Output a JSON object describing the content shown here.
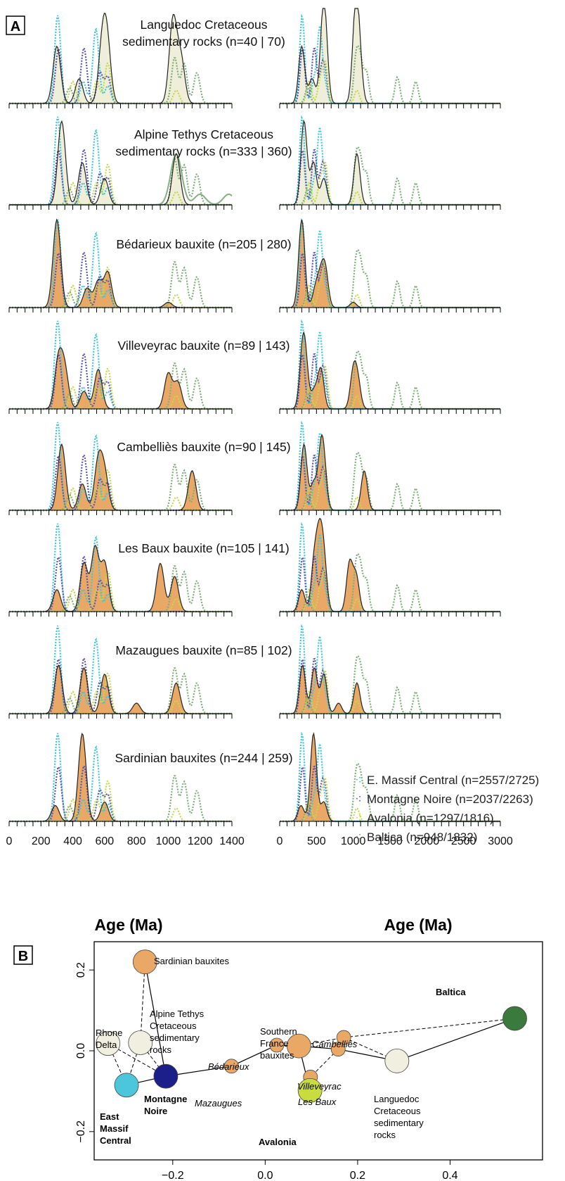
{
  "panel_a": {
    "label": "A",
    "xlabel": "Age (Ma)",
    "left_ticks": [
      0,
      200,
      400,
      600,
      800,
      1000,
      1200,
      1400
    ],
    "right_ticks": [
      0,
      500,
      1000,
      1500,
      2000,
      2500,
      3000
    ],
    "left_xlim": [
      0,
      1400
    ],
    "right_xlim": [
      0,
      3000
    ],
    "rows": [
      {
        "title_lines": [
          "Languedoc Cretaceous",
          "sedimentary rocks (n=40 | 70)"
        ],
        "fill": "cream"
      },
      {
        "title_lines": [
          "Alpine Tethys Cretaceous",
          "sedimentary rocks (n=333 | 360)"
        ],
        "fill": "cream"
      },
      {
        "title_lines": [
          "Bédarieux bauxite (n=205 | 280)"
        ],
        "fill": "orange"
      },
      {
        "title_lines": [
          "Villeveyrac bauxite (n=89 | 143)"
        ],
        "fill": "orange"
      },
      {
        "title_lines": [
          "Cambelliès bauxite (n=90 | 145)"
        ],
        "fill": "orange"
      },
      {
        "title_lines": [
          "Les Baux bauxite (n=105 | 141)"
        ],
        "fill": "orange"
      },
      {
        "title_lines": [
          "Mazaugues bauxite (n=85 | 102)"
        ],
        "fill": "orange"
      },
      {
        "title_lines": [
          "Sardinian bauxites (n=244 | 259)"
        ],
        "fill": "orange"
      }
    ],
    "legend": [
      {
        "label": "E. Massif Central (n=2557/2725)",
        "color": "#3ec6da"
      },
      {
        "label": "Montagne Noire (n=2037/2263)",
        "color": "#5a55b5"
      },
      {
        "label": "Avalonia (n=1297/1816)",
        "color": "#c3d94a"
      },
      {
        "label": "Baltica (n=948/1832)",
        "color": "#7fae7b"
      }
    ]
  },
  "panel_b": {
    "label": "B",
    "xlim": [
      -0.37,
      0.6
    ],
    "ylim": [
      -0.27,
      0.27
    ],
    "x_ticks": [
      -0.2,
      0.0,
      0.2,
      0.4
    ],
    "y_ticks": [
      -0.2,
      0.0,
      0.2
    ],
    "x_tick_labels": [
      "−0.2",
      "0.0",
      "0.2",
      "0.4"
    ],
    "y_tick_labels": [
      "−0.2",
      "0.0",
      "0.2"
    ]
  },
  "chart_data": [
    {
      "type": "area",
      "panel": "A",
      "kind": "kernel density estimates of detrital zircon U-Pb ages",
      "xlabel": "Age (Ma)",
      "xlim_left": [
        0,
        1400
      ],
      "xlim_right": [
        0,
        3000
      ],
      "reference_series": [
        {
          "name": "E. Massif Central (n=2557/2725)",
          "style": "dotted",
          "color": "#3ec6da",
          "peaks": [
            [
              305,
              1.0
            ],
            [
              545,
              0.85
            ],
            [
              465,
              0.25
            ],
            [
              620,
              0.2
            ]
          ]
        },
        {
          "name": "Montagne Noire (n=2037/2263)",
          "style": "dotted",
          "color": "#5a55b5",
          "peaks": [
            [
              310,
              0.62
            ],
            [
              470,
              0.63
            ],
            [
              570,
              0.35
            ],
            [
              620,
              0.3
            ]
          ]
        },
        {
          "name": "Avalonia (n=1297/1816)",
          "style": "dotted",
          "color": "#c3d94a",
          "peaks": [
            [
              400,
              0.25
            ],
            [
              620,
              0.46
            ],
            [
              550,
              0.25
            ],
            [
              1050,
              0.15
            ]
          ]
        },
        {
          "name": "Baltica (n=948/1832)",
          "style": "dotted",
          "color": "#7fae7b",
          "peaks": [
            [
              380,
              0.18
            ],
            [
              1040,
              0.52
            ],
            [
              1100,
              0.45
            ],
            [
              1180,
              0.35
            ],
            [
              1600,
              0.3
            ],
            [
              1850,
              0.25
            ]
          ]
        }
      ],
      "samples": [
        {
          "name": "Languedoc Cretaceous sedimentary rocks",
          "n": "40 | 70",
          "peaks": [
            [
              300,
              0.65
            ],
            [
              440,
              0.28
            ],
            [
              585,
              0.6
            ],
            [
              615,
              0.65
            ],
            [
              1030,
              0.95
            ],
            [
              1080,
              0.5
            ]
          ]
        },
        {
          "name": "Alpine Tethys Cretaceous sedimentary rocks",
          "n": "333 | 360",
          "peaks": [
            [
              330,
              0.95
            ],
            [
              460,
              0.48
            ],
            [
              600,
              0.3
            ],
            [
              1050,
              0.58
            ]
          ]
        },
        {
          "name": "Bédarieux bauxite",
          "n": "205 | 280",
          "peaks": [
            [
              300,
              1.0
            ],
            [
              490,
              0.22
            ],
            [
              560,
              0.3
            ],
            [
              620,
              0.4
            ],
            [
              1000,
              0.06
            ]
          ]
        },
        {
          "name": "Villeveyrac bauxite",
          "n": "89 | 143",
          "peaks": [
            [
              310,
              0.55
            ],
            [
              350,
              0.42
            ],
            [
              470,
              0.2
            ],
            [
              560,
              0.45
            ],
            [
              1000,
              0.4
            ],
            [
              1060,
              0.3
            ]
          ]
        },
        {
          "name": "Cambelliès bauxite",
          "n": "90 | 145",
          "peaks": [
            [
              330,
              0.75
            ],
            [
              460,
              0.3
            ],
            [
              560,
              0.55
            ],
            [
              600,
              0.4
            ],
            [
              1150,
              0.45
            ]
          ]
        },
        {
          "name": "Les Baux bauxite",
          "n": "105 | 141",
          "peaks": [
            [
              300,
              0.25
            ],
            [
              470,
              0.55
            ],
            [
              540,
              0.72
            ],
            [
              600,
              0.55
            ],
            [
              950,
              0.55
            ],
            [
              1040,
              0.4
            ]
          ]
        },
        {
          "name": "Mazaugues bauxite",
          "n": "85 | 102",
          "peaks": [
            [
              310,
              0.55
            ],
            [
              470,
              0.52
            ],
            [
              600,
              0.45
            ],
            [
              800,
              0.12
            ],
            [
              1050,
              0.35
            ]
          ]
        },
        {
          "name": "Sardinian bauxites",
          "n": "244 | 259",
          "peaks": [
            [
              290,
              0.18
            ],
            [
              460,
              1.0
            ],
            [
              600,
              0.22
            ]
          ]
        }
      ]
    },
    {
      "type": "scatter",
      "panel": "B",
      "xlim": [
        -0.37,
        0.6
      ],
      "ylim": [
        -0.27,
        0.27
      ],
      "points": [
        {
          "label": "Sardinian bauxites",
          "x": -0.26,
          "y": 0.22,
          "size": "medium",
          "color": "#e9a865"
        },
        {
          "label": "Alpine Tethys Cretaceous sedimentary rocks",
          "x": -0.27,
          "y": 0.02,
          "size": "large",
          "color": "#f1efdf"
        },
        {
          "label": "Rhone Delta",
          "x": -0.34,
          "y": 0.018,
          "size": "large",
          "color": "#f1efdf"
        },
        {
          "label": "East Massif Central",
          "x": -0.3,
          "y": -0.085,
          "size": "large",
          "color": "#4cc6da"
        },
        {
          "label": "Montagne Noire",
          "x": -0.215,
          "y": -0.063,
          "size": "large",
          "color": "#1c1f8a"
        },
        {
          "label": "Mazaugues",
          "x": -0.073,
          "y": -0.038,
          "size": "small",
          "color": "#e9a865"
        },
        {
          "label": "Bédarieux",
          "x": 0.025,
          "y": 0.014,
          "size": "small",
          "color": "#e9a865"
        },
        {
          "label": "Southern France bauxites",
          "x": 0.073,
          "y": 0.012,
          "size": "large",
          "color": "#e9a865"
        },
        {
          "label": "Cambelliès",
          "x": 0.17,
          "y": 0.033,
          "size": "small",
          "color": "#e9a865"
        },
        {
          "label": "Villeveyrac",
          "x": 0.158,
          "y": 0.004,
          "size": "small",
          "color": "#e9a865"
        },
        {
          "label": "Les Baux",
          "x": 0.098,
          "y": -0.065,
          "size": "small",
          "color": "#e9a865"
        },
        {
          "label": "Avalonia",
          "x": 0.097,
          "y": -0.098,
          "size": "large",
          "color": "#c9dc3f"
        },
        {
          "label": "Languedoc Cretaceous sedimentary rocks",
          "x": 0.285,
          "y": -0.025,
          "size": "large",
          "color": "#f1efdf"
        },
        {
          "label": "Baltica",
          "x": 0.54,
          "y": 0.08,
          "size": "large",
          "color": "#3a7a3c"
        }
      ],
      "solid_links": [
        [
          "Sardinian bauxites",
          "Montagne Noire"
        ],
        [
          "Montagne Noire",
          "Mazaugues"
        ],
        [
          "Mazaugues",
          "Bédarieux"
        ],
        [
          "Bédarieux",
          "Southern France bauxites"
        ],
        [
          "Southern France bauxites",
          "Villeveyrac"
        ],
        [
          "Villeveyrac",
          "Languedoc Cretaceous sedimentary rocks"
        ],
        [
          "Languedoc Cretaceous sedimentary rocks",
          "Baltica"
        ],
        [
          "Southern France bauxites",
          "Avalonia"
        ],
        [
          "East Massif Central",
          "Montagne Noire"
        ]
      ],
      "dashed_links": [
        [
          "Sardinian bauxites",
          "Alpine Tethys Cretaceous sedimentary rocks"
        ],
        [
          "Alpine Tethys Cretaceous sedimentary rocks",
          "East Massif Central"
        ],
        [
          "Alpine Tethys Cretaceous sedimentary rocks",
          "Montagne Noire"
        ],
        [
          "Rhone Delta",
          "Montagne Noire"
        ],
        [
          "Rhone Delta",
          "East Massif Central"
        ],
        [
          "Cambelliès",
          "Baltica"
        ],
        [
          "Cambelliès",
          "Languedoc Cretaceous sedimentary rocks"
        ],
        [
          "Southern France bauxites",
          "Cambelliès"
        ],
        [
          "Villeveyrac",
          "Les Baux"
        ]
      ]
    }
  ]
}
